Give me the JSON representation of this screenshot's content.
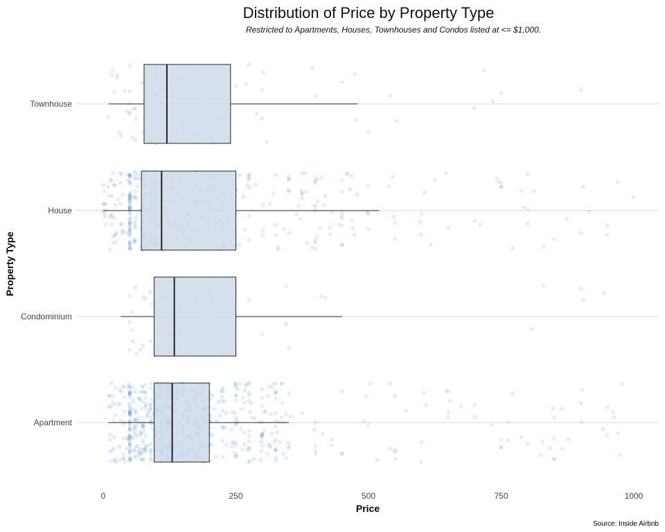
{
  "chart_data": {
    "type": "boxplot",
    "title": "Distribution of Price by Property Type",
    "subtitle": "Restricted to Apartments, Houses, Townhouses and Condos listed at <= $1,000.",
    "xlabel": "Price",
    "ylabel": "Property Type",
    "caption": "Source: Inside Airbnb",
    "xlim": [
      -20,
      1035
    ],
    "x_ticks": [
      0,
      250,
      500,
      750,
      1000
    ],
    "x_tick_labels": [
      "0",
      "250",
      "500",
      "750",
      "1000"
    ],
    "categories": [
      "Apartment",
      "Condominium",
      "House",
      "Townhouse"
    ],
    "boxes": [
      {
        "category": "Apartment",
        "whisker_low": 10,
        "q1": 96,
        "median": 130,
        "q3": 200,
        "whisker_high": 350
      },
      {
        "category": "Condominium",
        "whisker_low": 33,
        "q1": 96,
        "median": 134,
        "q3": 250,
        "whisker_high": 450
      },
      {
        "category": "House",
        "whisker_low": 0,
        "q1": 72,
        "median": 110,
        "q3": 250,
        "whisker_high": 520
      },
      {
        "category": "Townhouse",
        "whisker_low": 10,
        "q1": 77,
        "median": 120,
        "q3": 240,
        "whisker_high": 480
      }
    ],
    "points_description_counts": {
      "Apartment": 2400,
      "Condominium": 180,
      "House": 1400,
      "Townhouse": 260
    },
    "grid": "horizontal only",
    "colors": {
      "box_fill": "#cfdbe9",
      "points": "#4a86c5",
      "box_stroke": "#222222",
      "grid": "#d9d9d9"
    }
  }
}
